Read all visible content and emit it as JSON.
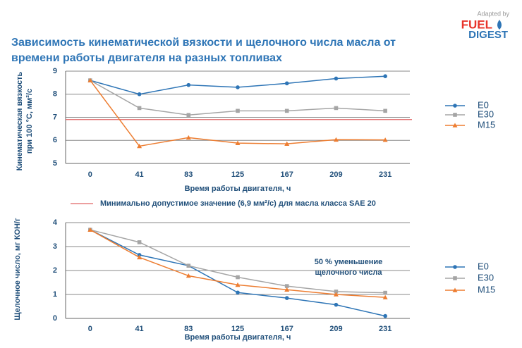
{
  "logo": {
    "line1": "Adapted by",
    "brand": "FUEL",
    "line2": "DIGEST"
  },
  "title": "Зависимость кинематической вязкости и щелочного числа масла от времени работы двигателя на разных топливах",
  "chart_data": [
    {
      "type": "line",
      "ylabel": "Кинематическая вязкость при 100 °C, мм²/с",
      "xlabel": "Время работы двигателя, ч",
      "categories": [
        "0",
        "41",
        "83",
        "125",
        "167",
        "209",
        "231"
      ],
      "ylim": [
        5,
        9
      ],
      "yticks": [
        5,
        6,
        7,
        8,
        9
      ],
      "grid": true,
      "series": [
        {
          "name": "E0",
          "color": "#2e75b6",
          "marker": "circle",
          "values": [
            8.6,
            8.0,
            8.4,
            8.3,
            8.47,
            8.68,
            8.78
          ]
        },
        {
          "name": "E30",
          "color": "#a5a5a5",
          "marker": "square",
          "values": [
            8.6,
            7.4,
            7.1,
            7.28,
            7.28,
            7.4,
            7.28
          ]
        },
        {
          "name": "M15",
          "color": "#ed7d31",
          "marker": "triangle",
          "values": [
            8.6,
            5.75,
            6.12,
            5.88,
            5.85,
            6.03,
            6.02
          ]
        }
      ],
      "reference_line": {
        "value": 6.9,
        "color": "#e06666",
        "label": "Минимально допустимое значение (6,9 мм²/с) для масла класса SAE 20"
      }
    },
    {
      "type": "line",
      "ylabel": "Щелочное число, мг КОН/г",
      "xlabel": "Время работы двигателя, ч",
      "categories": [
        "0",
        "41",
        "83",
        "125",
        "167",
        "209",
        "231"
      ],
      "ylim": [
        0,
        4
      ],
      "yticks": [
        0,
        1,
        2,
        3,
        4
      ],
      "grid": true,
      "series": [
        {
          "name": "E0",
          "color": "#2e75b6",
          "marker": "circle",
          "values": [
            3.7,
            2.65,
            2.2,
            1.08,
            0.85,
            0.57,
            0.1
          ]
        },
        {
          "name": "E30",
          "color": "#a5a5a5",
          "marker": "square",
          "values": [
            3.7,
            3.18,
            2.2,
            1.72,
            1.35,
            1.12,
            1.07
          ]
        },
        {
          "name": "M15",
          "color": "#ed7d31",
          "marker": "triangle",
          "values": [
            3.7,
            2.55,
            1.78,
            1.4,
            1.2,
            1.0,
            0.88
          ]
        }
      ],
      "annotation": [
        "50 % уменьшение",
        "щелочного числа"
      ]
    }
  ]
}
